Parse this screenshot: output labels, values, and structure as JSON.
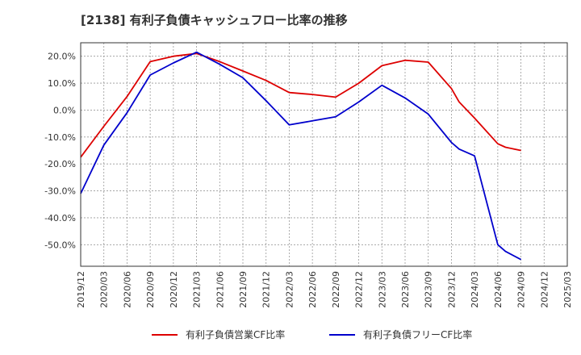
{
  "chart_data": {
    "type": "line",
    "title": "[2138]  有利子負債キャッシュフロー比率の推移",
    "x": [
      "2019/12",
      "2020/03",
      "2020/06",
      "2020/09",
      "2020/12",
      "2021/03",
      "2021/06",
      "2021/09",
      "2021/12",
      "2022/03",
      "2022/06",
      "2022/09",
      "2022/12",
      "2023/03",
      "2023/06",
      "2023/09",
      "2023/12",
      "2024/03",
      "2024/06",
      "2024/09",
      "2024/12",
      "2025/03"
    ],
    "ylim": [
      -58,
      25
    ],
    "yticks": [
      20,
      10,
      0,
      -10,
      -20,
      -30,
      -40,
      -50
    ],
    "ytick_labels": [
      "20.0%",
      "10.0%",
      "0.0%",
      "-10.0%",
      "-20.0%",
      "-30.0%",
      "-40.0%",
      "-50.0%"
    ],
    "grid": true,
    "legend_position": "bottom",
    "series": [
      {
        "name": "有利子負債営業CF比率",
        "color": "#dd0000",
        "points": [
          [
            "2019/12",
            -17.5
          ],
          [
            "2020/03",
            -6.0
          ],
          [
            "2020/06",
            5.0
          ],
          [
            "2020/09",
            18.0
          ],
          [
            "2020/12",
            20.0
          ],
          [
            "2021/03",
            21.0
          ],
          [
            "2021/06",
            18.0
          ],
          [
            "2021/09",
            14.5
          ],
          [
            "2021/12",
            11.0
          ],
          [
            "2022/03",
            6.5
          ],
          [
            "2022/06",
            5.8
          ],
          [
            "2022/09",
            4.8
          ],
          [
            "2022/12",
            10.0
          ],
          [
            "2023/03",
            16.5
          ],
          [
            "2023/06",
            18.5
          ],
          [
            "2023/09",
            17.8
          ],
          [
            "2023/12",
            8.0
          ],
          [
            "2024/01",
            3.0
          ],
          [
            "2024/03",
            -3.0
          ],
          [
            "2024/06",
            -12.5
          ],
          [
            "2024/07",
            -13.8
          ],
          [
            "2024/09",
            -15.0
          ]
        ]
      },
      {
        "name": "有利子負債フリーCF比率",
        "color": "#0000cc",
        "points": [
          [
            "2019/12",
            -31.0
          ],
          [
            "2020/03",
            -13.0
          ],
          [
            "2020/06",
            -1.0
          ],
          [
            "2020/09",
            13.0
          ],
          [
            "2020/12",
            17.5
          ],
          [
            "2021/03",
            21.5
          ],
          [
            "2021/06",
            17.0
          ],
          [
            "2021/09",
            12.0
          ],
          [
            "2021/12",
            3.5
          ],
          [
            "2022/03",
            -5.5
          ],
          [
            "2022/06",
            -4.0
          ],
          [
            "2022/09",
            -2.5
          ],
          [
            "2022/12",
            3.0
          ],
          [
            "2023/03",
            9.2
          ],
          [
            "2023/06",
            4.5
          ],
          [
            "2023/09",
            -1.5
          ],
          [
            "2023/12",
            -12.0
          ],
          [
            "2024/01",
            -14.5
          ],
          [
            "2024/03",
            -17.0
          ],
          [
            "2024/06",
            -50.0
          ],
          [
            "2024/07",
            -52.5
          ],
          [
            "2024/09",
            -55.5
          ]
        ]
      }
    ]
  }
}
